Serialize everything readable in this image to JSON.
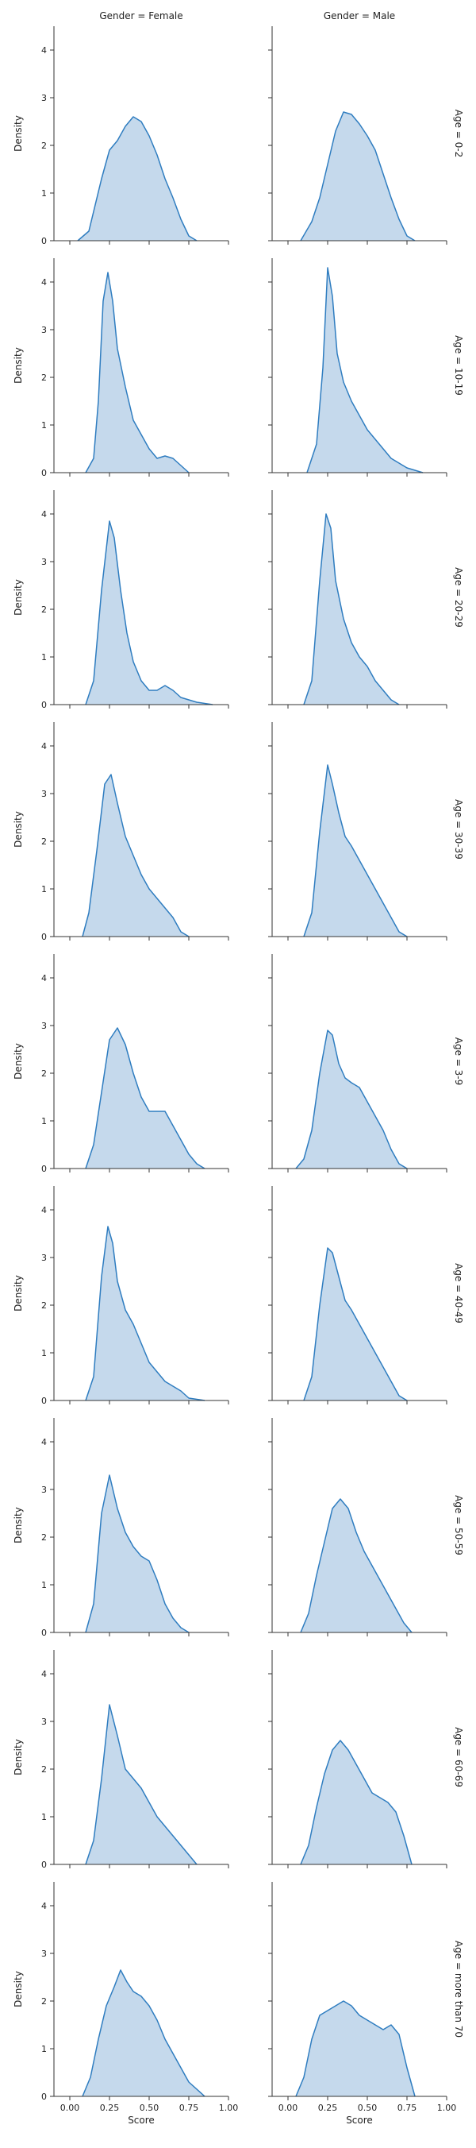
{
  "chart_data": {
    "type": "area",
    "chart_kind": "facet grid of kernel density estimate plots",
    "xlabel": "Score",
    "ylabel": "Density",
    "xlim": [
      -0.1,
      1.0
    ],
    "ylim": [
      0,
      4.5
    ],
    "x_ticks": [
      "0.00",
      "0.25",
      "0.50",
      "0.75",
      "1.00"
    ],
    "y_ticks": [
      "0",
      "1",
      "2",
      "3",
      "4"
    ],
    "grid": false,
    "legend": "none",
    "fill_color": "#c5d9ec",
    "line_color": "#2f7dc0",
    "columns": [
      "Gender = Female",
      "Gender = Male"
    ],
    "rows": [
      "Age = 0-2",
      "Age = 10-19",
      "Age = 20-29",
      "Age = 30-39",
      "Age = 3-9",
      "Age = 40-49",
      "Age = 50-59",
      "Age = 60-69",
      "Age = more than 70"
    ],
    "panels": [
      {
        "row": "Age = 0-2",
        "col": "Gender = Female",
        "x": [
          0.05,
          0.12,
          0.2,
          0.25,
          0.3,
          0.35,
          0.4,
          0.45,
          0.5,
          0.55,
          0.6,
          0.65,
          0.7,
          0.75,
          0.8
        ],
        "y": [
          0,
          0.2,
          1.3,
          1.9,
          2.1,
          2.4,
          2.6,
          2.5,
          2.2,
          1.8,
          1.3,
          0.9,
          0.45,
          0.1,
          0
        ]
      },
      {
        "row": "Age = 0-2",
        "col": "Gender = Male",
        "x": [
          0.08,
          0.15,
          0.2,
          0.25,
          0.3,
          0.35,
          0.4,
          0.45,
          0.5,
          0.55,
          0.6,
          0.65,
          0.7,
          0.75,
          0.8
        ],
        "y": [
          0,
          0.4,
          0.9,
          1.6,
          2.3,
          2.7,
          2.65,
          2.45,
          2.2,
          1.9,
          1.4,
          0.9,
          0.45,
          0.1,
          0
        ]
      },
      {
        "row": "Age = 10-19",
        "col": "Gender = Female",
        "x": [
          0.1,
          0.15,
          0.18,
          0.21,
          0.24,
          0.27,
          0.3,
          0.35,
          0.4,
          0.45,
          0.5,
          0.55,
          0.6,
          0.65,
          0.7,
          0.75
        ],
        "y": [
          0,
          0.3,
          1.5,
          3.6,
          4.2,
          3.6,
          2.6,
          1.8,
          1.1,
          0.8,
          0.5,
          0.3,
          0.35,
          0.3,
          0.15,
          0
        ]
      },
      {
        "row": "Age = 10-19",
        "col": "Gender = Male",
        "x": [
          0.12,
          0.18,
          0.22,
          0.25,
          0.28,
          0.31,
          0.35,
          0.4,
          0.45,
          0.5,
          0.55,
          0.6,
          0.65,
          0.7,
          0.75,
          0.8,
          0.85
        ],
        "y": [
          0,
          0.6,
          2.2,
          4.3,
          3.7,
          2.5,
          1.9,
          1.5,
          1.2,
          0.9,
          0.7,
          0.5,
          0.3,
          0.2,
          0.1,
          0.05,
          0
        ]
      },
      {
        "row": "Age = 20-29",
        "col": "Gender = Female",
        "x": [
          0.1,
          0.15,
          0.2,
          0.25,
          0.28,
          0.32,
          0.36,
          0.4,
          0.45,
          0.5,
          0.55,
          0.6,
          0.65,
          0.7,
          0.8,
          0.9
        ],
        "y": [
          0,
          0.5,
          2.4,
          3.85,
          3.5,
          2.4,
          1.5,
          0.9,
          0.5,
          0.3,
          0.3,
          0.4,
          0.3,
          0.15,
          0.05,
          0
        ]
      },
      {
        "row": "Age = 20-29",
        "col": "Gender = Male",
        "x": [
          0.1,
          0.15,
          0.2,
          0.24,
          0.27,
          0.3,
          0.35,
          0.4,
          0.45,
          0.5,
          0.55,
          0.6,
          0.65,
          0.7
        ],
        "y": [
          0,
          0.5,
          2.6,
          4.0,
          3.7,
          2.6,
          1.8,
          1.3,
          1.0,
          0.8,
          0.5,
          0.3,
          0.1,
          0
        ]
      },
      {
        "row": "Age = 30-39",
        "col": "Gender = Female",
        "x": [
          0.08,
          0.12,
          0.17,
          0.22,
          0.26,
          0.3,
          0.35,
          0.4,
          0.45,
          0.5,
          0.55,
          0.6,
          0.65,
          0.7,
          0.75
        ],
        "y": [
          0,
          0.5,
          1.8,
          3.2,
          3.4,
          2.8,
          2.1,
          1.7,
          1.3,
          1.0,
          0.8,
          0.6,
          0.4,
          0.1,
          0
        ]
      },
      {
        "row": "Age = 30-39",
        "col": "Gender = Male",
        "x": [
          0.1,
          0.15,
          0.2,
          0.25,
          0.28,
          0.32,
          0.36,
          0.4,
          0.45,
          0.5,
          0.55,
          0.6,
          0.65,
          0.7,
          0.75
        ],
        "y": [
          0,
          0.5,
          2.2,
          3.6,
          3.2,
          2.6,
          2.1,
          1.9,
          1.6,
          1.3,
          1.0,
          0.7,
          0.4,
          0.1,
          0
        ]
      },
      {
        "row": "Age = 3-9",
        "col": "Gender = Female",
        "x": [
          0.1,
          0.15,
          0.2,
          0.25,
          0.3,
          0.35,
          0.4,
          0.45,
          0.5,
          0.55,
          0.6,
          0.65,
          0.7,
          0.75,
          0.8,
          0.85
        ],
        "y": [
          0,
          0.5,
          1.6,
          2.7,
          2.95,
          2.6,
          2.0,
          1.5,
          1.2,
          1.2,
          1.2,
          0.9,
          0.6,
          0.3,
          0.1,
          0
        ]
      },
      {
        "row": "Age = 3-9",
        "col": "Gender = Male",
        "x": [
          0.05,
          0.1,
          0.15,
          0.2,
          0.25,
          0.28,
          0.32,
          0.36,
          0.4,
          0.45,
          0.5,
          0.55,
          0.6,
          0.65,
          0.7,
          0.75
        ],
        "y": [
          0,
          0.2,
          0.8,
          2.0,
          2.9,
          2.8,
          2.2,
          1.9,
          1.8,
          1.7,
          1.4,
          1.1,
          0.8,
          0.4,
          0.1,
          0
        ]
      },
      {
        "row": "Age = 40-49",
        "col": "Gender = Female",
        "x": [
          0.1,
          0.15,
          0.2,
          0.24,
          0.27,
          0.3,
          0.35,
          0.4,
          0.45,
          0.5,
          0.55,
          0.6,
          0.65,
          0.7,
          0.75,
          0.85
        ],
        "y": [
          0,
          0.5,
          2.6,
          3.65,
          3.3,
          2.5,
          1.9,
          1.6,
          1.2,
          0.8,
          0.6,
          0.4,
          0.3,
          0.2,
          0.05,
          0
        ]
      },
      {
        "row": "Age = 40-49",
        "col": "Gender = Male",
        "x": [
          0.1,
          0.15,
          0.2,
          0.25,
          0.28,
          0.32,
          0.36,
          0.4,
          0.45,
          0.5,
          0.55,
          0.6,
          0.65,
          0.7,
          0.75
        ],
        "y": [
          0,
          0.5,
          2.0,
          3.2,
          3.1,
          2.6,
          2.1,
          1.9,
          1.6,
          1.3,
          1.0,
          0.7,
          0.4,
          0.1,
          0
        ]
      },
      {
        "row": "Age = 50-59",
        "col": "Gender = Female",
        "x": [
          0.1,
          0.15,
          0.2,
          0.25,
          0.3,
          0.35,
          0.4,
          0.45,
          0.5,
          0.55,
          0.6,
          0.65,
          0.7,
          0.75
        ],
        "y": [
          0,
          0.6,
          2.5,
          3.3,
          2.6,
          2.1,
          1.8,
          1.6,
          1.5,
          1.1,
          0.6,
          0.3,
          0.1,
          0
        ]
      },
      {
        "row": "Age = 50-59",
        "col": "Gender = Male",
        "x": [
          0.08,
          0.13,
          0.18,
          0.23,
          0.28,
          0.33,
          0.38,
          0.43,
          0.48,
          0.53,
          0.58,
          0.63,
          0.68,
          0.73,
          0.78
        ],
        "y": [
          0,
          0.4,
          1.2,
          1.9,
          2.6,
          2.8,
          2.6,
          2.1,
          1.7,
          1.4,
          1.1,
          0.8,
          0.5,
          0.2,
          0
        ]
      },
      {
        "row": "Age = 60-69",
        "col": "Gender = Female",
        "x": [
          0.1,
          0.15,
          0.2,
          0.25,
          0.3,
          0.35,
          0.4,
          0.45,
          0.5,
          0.55,
          0.6,
          0.65,
          0.7,
          0.75,
          0.8
        ],
        "y": [
          0,
          0.5,
          1.8,
          3.35,
          2.7,
          2.0,
          1.8,
          1.6,
          1.3,
          1.0,
          0.8,
          0.6,
          0.4,
          0.2,
          0
        ]
      },
      {
        "row": "Age = 60-69",
        "col": "Gender = Male",
        "x": [
          0.08,
          0.13,
          0.18,
          0.23,
          0.28,
          0.33,
          0.38,
          0.43,
          0.48,
          0.53,
          0.58,
          0.63,
          0.68,
          0.73,
          0.78
        ],
        "y": [
          0,
          0.4,
          1.2,
          1.9,
          2.4,
          2.6,
          2.4,
          2.1,
          1.8,
          1.5,
          1.4,
          1.3,
          1.1,
          0.6,
          0
        ]
      },
      {
        "row": "Age = more than 70",
        "col": "Gender = Female",
        "x": [
          0.08,
          0.13,
          0.18,
          0.23,
          0.28,
          0.32,
          0.36,
          0.4,
          0.45,
          0.5,
          0.55,
          0.6,
          0.65,
          0.7,
          0.75,
          0.85
        ],
        "y": [
          0,
          0.4,
          1.2,
          1.9,
          2.3,
          2.65,
          2.4,
          2.2,
          2.1,
          1.9,
          1.6,
          1.2,
          0.9,
          0.6,
          0.3,
          0
        ]
      },
      {
        "row": "Age = more than 70",
        "col": "Gender = Male",
        "x": [
          0.05,
          0.1,
          0.15,
          0.2,
          0.25,
          0.3,
          0.35,
          0.4,
          0.45,
          0.5,
          0.55,
          0.6,
          0.65,
          0.7,
          0.75,
          0.8
        ],
        "y": [
          0,
          0.4,
          1.2,
          1.7,
          1.8,
          1.9,
          2.0,
          1.9,
          1.7,
          1.6,
          1.5,
          1.4,
          1.5,
          1.3,
          0.6,
          0
        ]
      }
    ]
  }
}
